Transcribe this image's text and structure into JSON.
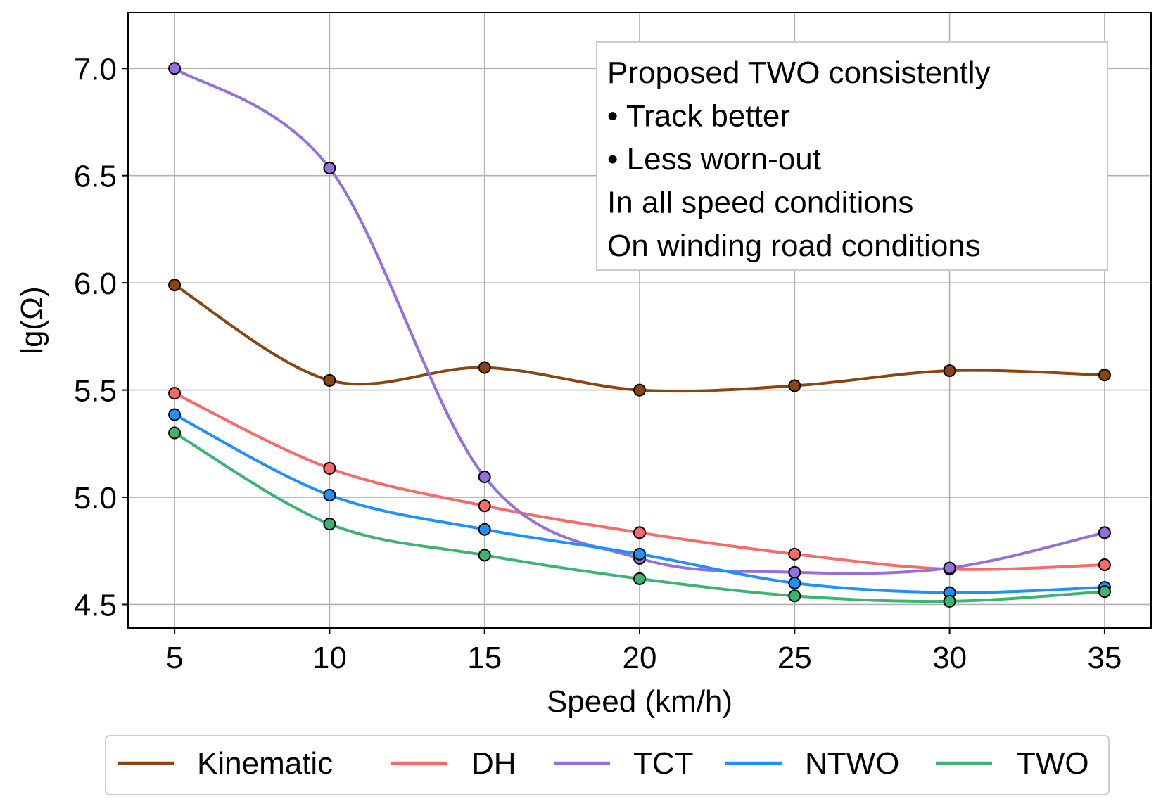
{
  "chart_data": {
    "type": "line",
    "title": "",
    "xlabel": "Speed (km/h)",
    "ylabel": "lg(Ω)",
    "x": [
      5,
      10,
      15,
      20,
      25,
      30,
      35
    ],
    "xlim": [
      3.5,
      36.5
    ],
    "ylim": [
      4.39,
      7.26
    ],
    "xticks": [
      5,
      10,
      15,
      20,
      25,
      30,
      35
    ],
    "xtick_labels": [
      "5",
      "10",
      "15",
      "20",
      "25",
      "30",
      "35"
    ],
    "yticks": [
      4.5,
      5.0,
      5.5,
      6.0,
      6.5,
      7.0
    ],
    "ytick_labels": [
      "4.5",
      "5.0",
      "5.5",
      "6.0",
      "6.5",
      "7.0"
    ],
    "grid": true,
    "legend_position": "bottom",
    "series": [
      {
        "name": "Kinematic",
        "color": "#8B4513",
        "values": [
          5.99,
          5.545,
          5.605,
          5.5,
          5.52,
          5.59,
          5.57
        ]
      },
      {
        "name": "DH",
        "color": "#F86A6A",
        "values": [
          5.485,
          5.135,
          4.96,
          4.835,
          4.735,
          4.665,
          4.685
        ]
      },
      {
        "name": "TCT",
        "color": "#9370DB",
        "values": [
          7.0,
          6.535,
          5.095,
          4.715,
          4.65,
          4.67,
          4.835
        ]
      },
      {
        "name": "NTWO",
        "color": "#1E90FF",
        "values": [
          5.385,
          5.01,
          4.85,
          4.735,
          4.6,
          4.555,
          4.58
        ]
      },
      {
        "name": "TWO",
        "color": "#3CB371",
        "values": [
          5.3,
          4.875,
          4.73,
          4.62,
          4.54,
          4.515,
          4.56
        ]
      }
    ],
    "annotation": {
      "lines": [
        "Proposed TWO consistently",
        "•  Track better",
        "•  Less worn-out",
        "In all speed conditions",
        "On winding road conditions"
      ]
    }
  }
}
